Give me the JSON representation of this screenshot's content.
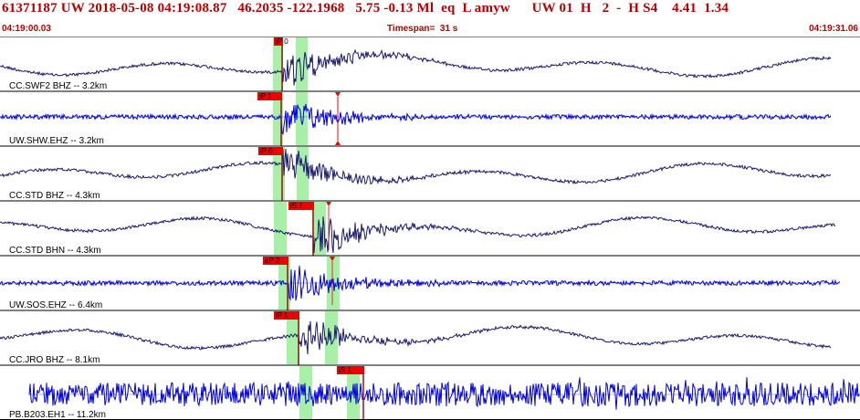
{
  "header": {
    "title": "61371187 UW 2018-05-08 04:19:08.87   46.2035 -122.1968   5.75 -0.13 Ml  eq  L amyw      UW 01  H   2  -  H S4    4.41  1.34",
    "start_time": "04:19:00.03",
    "timespan": "Timespan=  31 s",
    "end_time": "04:19:31.06"
  },
  "colors": {
    "header_text": "#b80000",
    "low_freq_wave": "#1a1a6e",
    "high_freq_wave": "#0000e0",
    "pick_box": "#ee0000",
    "window_band": "#a8f0a8",
    "separator": "#000000"
  },
  "traces": [
    {
      "label": "CC.SWF2 BHZ -- 3.2km",
      "type": "low",
      "picks": [
        {
          "label": "iP 0",
          "marker": false
        }
      ]
    },
    {
      "label": "UW.SHW.EHZ -- 3.2km",
      "type": "high",
      "picks": [
        {
          "label": "iP 1",
          "marker": false
        },
        {
          "label": "",
          "marker": true
        }
      ]
    },
    {
      "label": "CC.STD BHZ -- 4.3km",
      "type": "low",
      "picks": [
        {
          "label": "iP 0",
          "marker": false
        }
      ]
    },
    {
      "label": "CC.STD BHN -- 4.3km",
      "type": "low",
      "picks": [
        {
          "label": "iS 1",
          "marker": true
        }
      ]
    },
    {
      "label": "UW.SOS.EHZ -- 6.4km",
      "type": "high",
      "picks": [
        {
          "label": "eP 2",
          "marker": true
        }
      ]
    },
    {
      "label": "CC.JRO BHZ -- 8.1km",
      "type": "low",
      "picks": [
        {
          "label": "iP 1",
          "marker": false
        }
      ]
    },
    {
      "label": "PB.B203.EH1 -- 11.2km",
      "type": "noise",
      "picks": [
        {
          "label": "iS 1",
          "marker": false
        }
      ]
    }
  ]
}
